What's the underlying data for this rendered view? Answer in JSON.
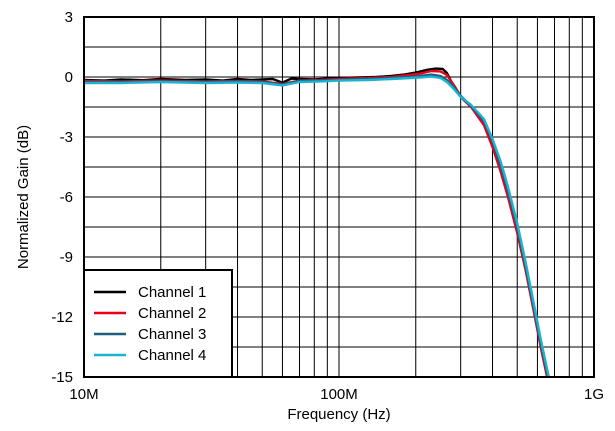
{
  "chart_data": {
    "type": "line",
    "title": "",
    "xlabel": "Frequency (Hz)",
    "ylabel": "Normalized Gain (dB)",
    "xscale": "log",
    "xlim": [
      10000000,
      1000000000
    ],
    "ylim": [
      -15,
      3
    ],
    "grid": true,
    "legend_position": "bottom-left",
    "x_ticks": [
      {
        "value": 10000000,
        "label": "10M"
      },
      {
        "value": 100000000,
        "label": "100M"
      },
      {
        "value": 1000000000,
        "label": "1G"
      }
    ],
    "y_ticks": [
      {
        "value": 3,
        "label": "3"
      },
      {
        "value": 0,
        "label": "0"
      },
      {
        "value": -3,
        "label": "-3"
      },
      {
        "value": -6,
        "label": "-6"
      },
      {
        "value": -9,
        "label": "-9"
      },
      {
        "value": -12,
        "label": "-12"
      },
      {
        "value": -15,
        "label": "-15"
      }
    ],
    "series": [
      {
        "name": "Channel 1",
        "color": "#000000",
        "points": [
          [
            10000000,
            -0.15
          ],
          [
            12000000,
            -0.18
          ],
          [
            14000000,
            -0.12
          ],
          [
            17000000,
            -0.16
          ],
          [
            20000000,
            -0.1
          ],
          [
            25000000,
            -0.15
          ],
          [
            30000000,
            -0.12
          ],
          [
            35000000,
            -0.18
          ],
          [
            40000000,
            -0.1
          ],
          [
            45000000,
            -0.15
          ],
          [
            50000000,
            -0.12
          ],
          [
            55000000,
            -0.1
          ],
          [
            60000000,
            -0.28
          ],
          [
            65000000,
            -0.08
          ],
          [
            70000000,
            -0.1
          ],
          [
            80000000,
            -0.12
          ],
          [
            90000000,
            -0.08
          ],
          [
            100000000,
            -0.05
          ],
          [
            120000000,
            -0.02
          ],
          [
            140000000,
            0.0
          ],
          [
            160000000,
            0.05
          ],
          [
            180000000,
            0.12
          ],
          [
            200000000,
            0.22
          ],
          [
            220000000,
            0.35
          ],
          [
            240000000,
            0.42
          ],
          [
            255000000,
            0.4
          ],
          [
            265000000,
            0.2
          ],
          [
            275000000,
            -0.2
          ],
          [
            285000000,
            -0.5
          ],
          [
            300000000,
            -1.0
          ],
          [
            330000000,
            -1.5
          ],
          [
            370000000,
            -2.3
          ],
          [
            400000000,
            -3.3
          ],
          [
            430000000,
            -4.5
          ],
          [
            460000000,
            -5.8
          ],
          [
            500000000,
            -7.6
          ],
          [
            540000000,
            -9.6
          ],
          [
            580000000,
            -11.6
          ],
          [
            620000000,
            -13.5
          ],
          [
            660000000,
            -15.0
          ]
        ]
      },
      {
        "name": "Channel 2",
        "color": "#e8001c",
        "points": [
          [
            10000000,
            -0.2
          ],
          [
            14000000,
            -0.22
          ],
          [
            20000000,
            -0.18
          ],
          [
            30000000,
            -0.22
          ],
          [
            40000000,
            -0.2
          ],
          [
            50000000,
            -0.22
          ],
          [
            60000000,
            -0.35
          ],
          [
            70000000,
            -0.18
          ],
          [
            85000000,
            -0.15
          ],
          [
            100000000,
            -0.1
          ],
          [
            130000000,
            -0.05
          ],
          [
            160000000,
            0.0
          ],
          [
            190000000,
            0.1
          ],
          [
            210000000,
            0.18
          ],
          [
            230000000,
            0.3
          ],
          [
            250000000,
            0.28
          ],
          [
            265000000,
            0.1
          ],
          [
            280000000,
            -0.35
          ],
          [
            300000000,
            -0.95
          ],
          [
            330000000,
            -1.5
          ],
          [
            370000000,
            -2.4
          ],
          [
            400000000,
            -3.5
          ],
          [
            430000000,
            -4.7
          ],
          [
            460000000,
            -6.0
          ],
          [
            500000000,
            -7.8
          ],
          [
            540000000,
            -9.7
          ],
          [
            580000000,
            -11.7
          ],
          [
            620000000,
            -13.6
          ],
          [
            655000000,
            -15.0
          ]
        ]
      },
      {
        "name": "Channel 3",
        "color": "#1f5f7a",
        "points": [
          [
            10000000,
            -0.25
          ],
          [
            14000000,
            -0.25
          ],
          [
            20000000,
            -0.22
          ],
          [
            30000000,
            -0.25
          ],
          [
            40000000,
            -0.22
          ],
          [
            50000000,
            -0.25
          ],
          [
            60000000,
            -0.38
          ],
          [
            70000000,
            -0.2
          ],
          [
            85000000,
            -0.18
          ],
          [
            100000000,
            -0.15
          ],
          [
            130000000,
            -0.1
          ],
          [
            160000000,
            -0.05
          ],
          [
            190000000,
            0.0
          ],
          [
            210000000,
            0.05
          ],
          [
            230000000,
            0.12
          ],
          [
            250000000,
            0.05
          ],
          [
            265000000,
            -0.15
          ],
          [
            280000000,
            -0.45
          ],
          [
            300000000,
            -0.95
          ],
          [
            330000000,
            -1.45
          ],
          [
            370000000,
            -2.2
          ],
          [
            400000000,
            -3.2
          ],
          [
            430000000,
            -4.4
          ],
          [
            460000000,
            -5.7
          ],
          [
            500000000,
            -7.5
          ],
          [
            540000000,
            -9.5
          ],
          [
            580000000,
            -11.5
          ],
          [
            620000000,
            -13.4
          ],
          [
            660000000,
            -15.0
          ]
        ]
      },
      {
        "name": "Channel 4",
        "color": "#1ab4d2",
        "points": [
          [
            10000000,
            -0.3
          ],
          [
            14000000,
            -0.3
          ],
          [
            20000000,
            -0.25
          ],
          [
            30000000,
            -0.3
          ],
          [
            40000000,
            -0.28
          ],
          [
            50000000,
            -0.3
          ],
          [
            60000000,
            -0.42
          ],
          [
            70000000,
            -0.25
          ],
          [
            85000000,
            -0.22
          ],
          [
            100000000,
            -0.18
          ],
          [
            130000000,
            -0.15
          ],
          [
            160000000,
            -0.1
          ],
          [
            190000000,
            -0.05
          ],
          [
            210000000,
            -0.02
          ],
          [
            230000000,
            0.02
          ],
          [
            250000000,
            -0.05
          ],
          [
            265000000,
            -0.25
          ],
          [
            280000000,
            -0.55
          ],
          [
            300000000,
            -1.0
          ],
          [
            330000000,
            -1.4
          ],
          [
            370000000,
            -2.1
          ],
          [
            400000000,
            -3.1
          ],
          [
            430000000,
            -4.2
          ],
          [
            460000000,
            -5.5
          ],
          [
            500000000,
            -7.3
          ],
          [
            540000000,
            -9.3
          ],
          [
            580000000,
            -11.3
          ],
          [
            620000000,
            -13.2
          ],
          [
            665000000,
            -15.0
          ]
        ]
      }
    ]
  }
}
